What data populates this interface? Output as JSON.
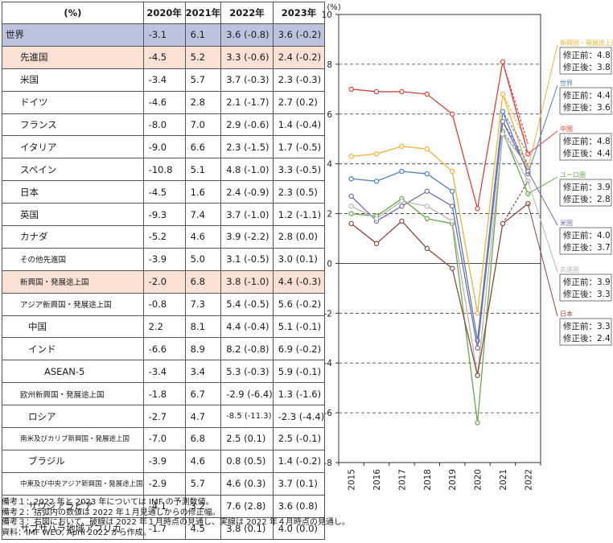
{
  "table": {
    "headers": [
      "(%)",
      "2020年",
      "2021年",
      "2022年",
      "2023年"
    ],
    "rows": [
      {
        "name": "世界",
        "v2020": "-3.1",
        "v2021": "6.1",
        "v2022": "3.6 (-0.8)",
        "v2023": "3.6 (-0.2)",
        "style": "world",
        "indent": 0
      },
      {
        "name": "先進国",
        "v2020": "-4.5",
        "v2021": "5.2",
        "v2022": "3.3 (-0.6)",
        "v2023": "2.4 (-0.2)",
        "style": "grp",
        "indent": 1
      },
      {
        "name": "米国",
        "v2020": "-3.4",
        "v2021": "5.7",
        "v2022": "3.7 (-0.3)",
        "v2023": "2.3 (-0.3)",
        "style": "",
        "indent": 2
      },
      {
        "name": "ドイツ",
        "v2020": "-4.6",
        "v2021": "2.8",
        "v2022": "2.1 (-1.7)",
        "v2023": "2.7 (0.2)",
        "style": "",
        "indent": 2
      },
      {
        "name": "フランス",
        "v2020": "-8.0",
        "v2021": "7.0",
        "v2022": "2.9 (-0.6)",
        "v2023": "1.4 (-0.4)",
        "style": "",
        "indent": 2
      },
      {
        "name": "イタリア",
        "v2020": "-9.0",
        "v2021": "6.6",
        "v2022": "2.3 (-1.5)",
        "v2023": "1.7 (-0.5)",
        "style": "",
        "indent": 2
      },
      {
        "name": "スペイン",
        "v2020": "-10.8",
        "v2021": "5.1",
        "v2022": "4.8 (-1.0)",
        "v2023": "3.3 (-0.5)",
        "style": "",
        "indent": 2
      },
      {
        "name": "日本",
        "v2020": "-4.5",
        "v2021": "1.6",
        "v2022": "2.4 (-0.9)",
        "v2023": "2.3 (0.5)",
        "style": "",
        "indent": 2
      },
      {
        "name": "英国",
        "v2020": "-9.3",
        "v2021": "7.4",
        "v2022": "3.7 (-1.0)",
        "v2023": "1.2 (-1.1)",
        "style": "",
        "indent": 2
      },
      {
        "name": "カナダ",
        "v2020": "-5.2",
        "v2021": "4.6",
        "v2022": "3.9 (-2.2)",
        "v2023": "2.8 (0.0)",
        "style": "",
        "indent": 2
      },
      {
        "name": "その他先進国",
        "v2020": "-3.9",
        "v2021": "5.0",
        "v2022": "3.1 (-0.5)",
        "v2023": "3.0 (0.1)",
        "style": "",
        "indent": 2,
        "size": "small"
      },
      {
        "name": "新興国・発展途上国",
        "v2020": "-2.0",
        "v2021": "6.8",
        "v2022": "3.8 (-1.0)",
        "v2023": "4.4 (-0.3)",
        "style": "grp",
        "indent": 1,
        "size": "small"
      },
      {
        "name": "アジア新興国・発展途上国",
        "v2020": "-0.8",
        "v2021": "7.3",
        "v2022": "5.4 (-0.5)",
        "v2023": "5.6 (-0.2)",
        "style": "",
        "indent": 2,
        "size": "small"
      },
      {
        "name": "中国",
        "v2020": "2.2",
        "v2021": "8.1",
        "v2022": "4.4 (-0.4)",
        "v2023": "5.1 (-0.1)",
        "style": "",
        "indent": 3
      },
      {
        "name": "インド",
        "v2020": "-6.6",
        "v2021": "8.9",
        "v2022": "8.2 (-0.8)",
        "v2023": "6.9 (-0.2)",
        "style": "",
        "indent": 3
      },
      {
        "name": "ASEAN-5",
        "v2020": "-3.4",
        "v2021": "3.4",
        "v2022": "5.3 (-0.3)",
        "v2023": "5.9 (-0.1)",
        "style": "",
        "indent": 4
      },
      {
        "name": "欧州新興国・発展途上国",
        "v2020": "-1.8",
        "v2021": "6.7",
        "v2022": "-2.9 (-6.4)",
        "v2023": "1.3 (-1.6)",
        "style": "",
        "indent": 2,
        "size": "small"
      },
      {
        "name": "ロシア",
        "v2020": "-2.7",
        "v2021": "4.7",
        "v2022": "-8.5 (-11.3)",
        "v2023": "-2.3 (-4.4)",
        "style": "",
        "indent": 3,
        "numsmall": true
      },
      {
        "name": "南米及びカリブ新興国・発展途上国",
        "v2020": "-7.0",
        "v2021": "6.8",
        "v2022": "2.5 (0.1)",
        "v2023": "2.5 (-0.1)",
        "style": "",
        "indent": 2,
        "size": "tiny"
      },
      {
        "name": "ブラジル",
        "v2020": "-3.9",
        "v2021": "4.6",
        "v2022": "0.8 (0.5)",
        "v2023": "1.4 (-0.2)",
        "style": "",
        "indent": 3
      },
      {
        "name": "中東及び中央アジア新興国・発展途上国",
        "v2020": "-2.9",
        "v2021": "5.7",
        "v2022": "4.6 (0.3)",
        "v2023": "3.7 (0.1)",
        "style": "",
        "indent": 2,
        "size": "tiny"
      },
      {
        "name": "サウジアラビア",
        "v2020": "-4.1",
        "v2021": "3.2",
        "v2022": "7.6 (2.8)",
        "v2023": "3.6 (0.8)",
        "style": "",
        "indent": 3
      },
      {
        "name": "サブサハラ地域アフリカ",
        "v2020": "-1.7",
        "v2021": "4.5",
        "v2022": "3.8 (0.1)",
        "v2023": "4.0 (0.0)",
        "style": "",
        "indent": 2
      }
    ]
  },
  "notes": [
    "備考１：2022 年と 2023 年については IMF の予測数値。",
    "備考２：括弧内の数値は 2022 年１月見通しからの修正幅。",
    "備考３：右図において、破線は 2022 年１月時点の見通し、実線は 2022 年４月時点の見通し。",
    "資料：IMF WEO, April 2022 から作成。"
  ],
  "chart_data": {
    "type": "line",
    "ylabel": "(%)",
    "ylim": [
      -8,
      10
    ],
    "yticks": [
      "10",
      "8",
      "6",
      "4",
      "2",
      "0",
      "-2",
      "-4",
      "-6",
      "-8"
    ],
    "x": [
      "2015",
      "2016",
      "2017",
      "2018",
      "2019",
      "2020",
      "2021",
      "2022"
    ],
    "series": [
      {
        "name": "新興国・発展途上国",
        "color": "#f0b232",
        "values": [
          4.3,
          4.4,
          4.7,
          4.6,
          3.7,
          -2.0,
          6.8,
          3.8
        ],
        "jan2022": 4.8,
        "box": [
          "修正前：4.8",
          "修正後：3.8"
        ]
      },
      {
        "name": "世界",
        "color": "#4f81bd",
        "values": [
          3.4,
          3.3,
          3.7,
          3.6,
          2.9,
          -3.1,
          6.1,
          3.6
        ],
        "jan2022": 4.4,
        "box": [
          "修正前：4.4",
          "修正後：3.6"
        ]
      },
      {
        "name": "中国",
        "color": "#d9413c",
        "values": [
          7.0,
          6.9,
          6.9,
          6.8,
          6.0,
          2.2,
          8.1,
          4.4
        ],
        "jan2022": 4.8,
        "box": [
          "修正前：4.8",
          "修正後：4.4"
        ]
      },
      {
        "name": "ユーロ圏",
        "color": "#6aa64b",
        "values": [
          2.0,
          1.9,
          2.6,
          1.8,
          1.6,
          -6.4,
          5.3,
          2.8
        ],
        "jan2022": 3.9,
        "box": [
          "修正前：3.9",
          "修正後：2.8"
        ]
      },
      {
        "name": "米国",
        "color": "#7a68a8",
        "values": [
          2.7,
          1.7,
          2.3,
          2.9,
          2.3,
          -3.4,
          5.7,
          3.7
        ],
        "jan2022": 4.0,
        "box": [
          "修正前：4.0",
          "修正後：3.7"
        ]
      },
      {
        "name": "先進国",
        "color": "#b5b5b5",
        "values": [
          2.3,
          1.8,
          2.5,
          2.3,
          1.7,
          -4.5,
          5.2,
          3.3
        ],
        "jan2022": 3.9,
        "box": [
          "修正前：3.9",
          "修正後：3.3"
        ]
      },
      {
        "name": "日本",
        "color": "#8b4a3a",
        "values": [
          1.6,
          0.8,
          1.7,
          0.6,
          -0.2,
          -4.5,
          1.6,
          2.4
        ],
        "jan2022": 3.3,
        "box": [
          "修正前：3.3",
          "修正後：2.4"
        ]
      }
    ]
  }
}
